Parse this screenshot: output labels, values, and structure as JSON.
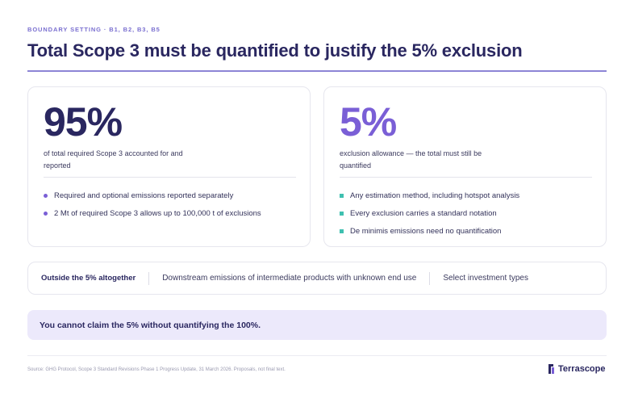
{
  "header": {
    "eyebrow": "BOUNDARY SETTING · B1, B2, B3, B5",
    "title": "Total Scope 3 must be quantified to justify the 5% exclusion"
  },
  "cards": [
    {
      "big": "95%",
      "description": "of total required Scope 3 accounted for and reported",
      "bullets": [
        "Required and optional emissions reported separately",
        "2 Mt of required Scope 3 allows up to 100,000 t of exclusions"
      ]
    },
    {
      "big": "5%",
      "description": "exclusion allowance — the total must still be quantified",
      "bullets": [
        "Any estimation method, including hotspot analysis",
        "Every exclusion carries a standard notation",
        "De minimis emissions need no quantification"
      ]
    }
  ],
  "strip": {
    "label": "Outside the 5% altogether",
    "items": [
      "Downstream emissions of intermediate products with unknown end use",
      "Select investment types"
    ]
  },
  "callout": "You cannot claim the 5% without quantifying the 100%.",
  "footer": {
    "source": "Source: GHG Protocol, Scope 3 Standard Revisions Phase 1 Progress Update, 31 March 2026. Proposals, not final text.",
    "brand": "Terrascope"
  },
  "colors": {
    "accent_purple": "#7a5fd6",
    "navy": "#2a2760",
    "teal": "#3fc0b0",
    "callout_bg": "#ece9fb"
  },
  "icons": {
    "left_bullet": "circle-bullet-icon",
    "right_bullet": "square-bullet-icon",
    "logo": "terrascope-logo-icon"
  }
}
